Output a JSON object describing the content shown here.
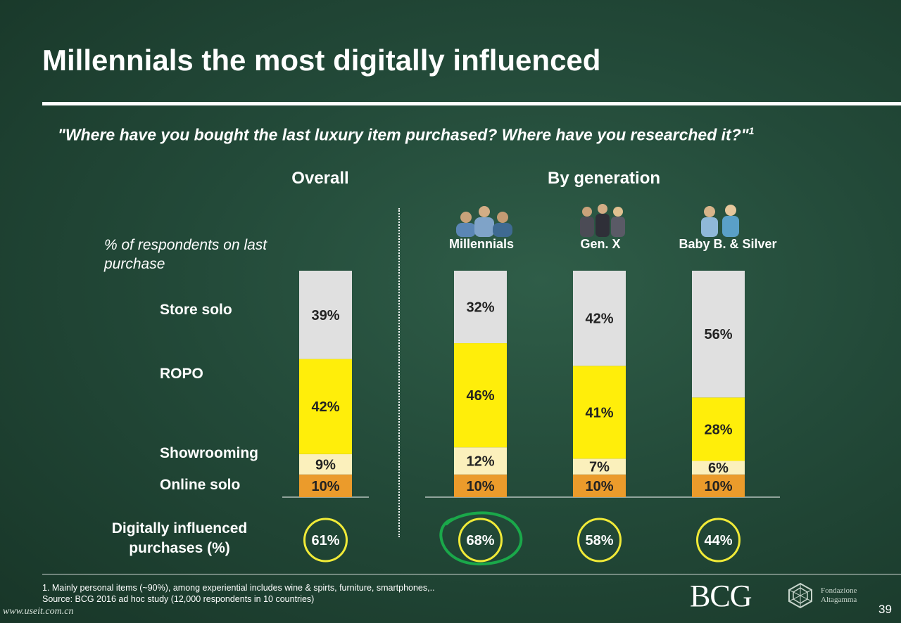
{
  "title": "Millennials the most digitally influenced",
  "question": "\"Where have you bought the last luxury item purchased? Where have you researched it?\"",
  "question_sup": "1",
  "section_overall": "Overall",
  "section_by_generation": "By generation",
  "respondents_label": "% of respondents on last purchase",
  "digitally_influenced_label": "Digitally influenced purchases (%)",
  "footnote_1": "1. Mainly personal items (~90%), among experiential includes wine & spirts, furniture, smartphones,..",
  "source": "Source: BCG 2016 ad hoc study (12,000 respondents in 10 countries)",
  "bcg_logo": "BCG",
  "fondazione_line1": "Fondazione",
  "fondazione_line2": "Altagamma",
  "page_number": "39",
  "watermark": "www.useit.com.cn",
  "colors": {
    "store_solo": "#e0e0e0",
    "ropo": "#ffee0a",
    "showrooming": "#fbf0bc",
    "online_solo": "#eb9b2b",
    "circle": "#f0ea38",
    "highlight": "#1aa84a"
  },
  "chart_data": {
    "type": "bar",
    "stacked": true,
    "normalized": true,
    "categories": [
      "Overall",
      "Millennials",
      "Gen. X",
      "Baby B. & Silver"
    ],
    "series": [
      {
        "name": "Online solo",
        "values": [
          10,
          10,
          10,
          10
        ]
      },
      {
        "name": "Showrooming",
        "values": [
          9,
          12,
          7,
          6
        ]
      },
      {
        "name": "ROPO",
        "values": [
          42,
          46,
          41,
          28
        ]
      },
      {
        "name": "Store solo",
        "values": [
          39,
          32,
          42,
          56
        ]
      }
    ],
    "segment_labels": [
      [
        "10%",
        "9%",
        "42%",
        "39%"
      ],
      [
        "10%",
        "12%",
        "46%",
        "32%"
      ],
      [
        "10%",
        "7%",
        "41%",
        "42%"
      ],
      [
        "10%",
        "6%",
        "28%",
        "56%"
      ]
    ],
    "digitally_influenced": [
      61,
      68,
      58,
      44
    ],
    "digitally_influenced_labels": [
      "61%",
      "68%",
      "58%",
      "44%"
    ],
    "highlighted_category": "Millennials",
    "unit": "%"
  }
}
